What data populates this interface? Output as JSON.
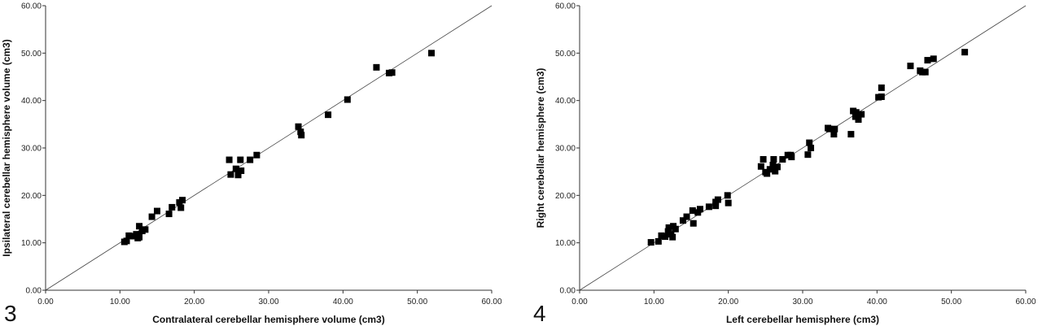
{
  "chart_data": [
    {
      "type": "scatter",
      "panel_label": "3",
      "title": "",
      "xlabel": "Contralateral cerebellar hemisphere volume (cm3)",
      "ylabel": "Ipsilateral cerebellar hemisphere volume (cm3)",
      "xlim": [
        0,
        60
      ],
      "ylim": [
        0,
        60
      ],
      "xticks": [
        "0.00",
        "10.00",
        "20.00",
        "30.00",
        "40.00",
        "50.00",
        "60.00"
      ],
      "yticks": [
        "0.00",
        "10.00",
        "20.00",
        "30.00",
        "40.00",
        "50.00",
        "60.00"
      ],
      "grid": false,
      "reference_line": [
        [
          0,
          0
        ],
        [
          60,
          60
        ]
      ],
      "points": [
        [
          10.6,
          10.2
        ],
        [
          10.9,
          10.4
        ],
        [
          11.2,
          11.5
        ],
        [
          11.8,
          11.4
        ],
        [
          12.2,
          11.8
        ],
        [
          12.4,
          11.0
        ],
        [
          12.6,
          11.2
        ],
        [
          12.6,
          13.5
        ],
        [
          13.0,
          12.5
        ],
        [
          13.4,
          12.8
        ],
        [
          14.3,
          15.5
        ],
        [
          15.0,
          16.7
        ],
        [
          16.6,
          16.1
        ],
        [
          17.0,
          17.5
        ],
        [
          18.0,
          18.5
        ],
        [
          18.2,
          17.4
        ],
        [
          18.4,
          19.0
        ],
        [
          24.7,
          27.5
        ],
        [
          24.9,
          24.4
        ],
        [
          25.6,
          25.6
        ],
        [
          25.9,
          24.3
        ],
        [
          26.2,
          27.5
        ],
        [
          26.3,
          25.2
        ],
        [
          27.5,
          27.5
        ],
        [
          28.4,
          28.5
        ],
        [
          34.0,
          34.5
        ],
        [
          34.3,
          33.4
        ],
        [
          34.4,
          32.7
        ],
        [
          38.0,
          37.0
        ],
        [
          40.6,
          40.2
        ],
        [
          44.5,
          47.0
        ],
        [
          46.2,
          45.8
        ],
        [
          46.6,
          45.9
        ],
        [
          51.9,
          50.0
        ]
      ]
    },
    {
      "type": "scatter",
      "panel_label": "4",
      "title": "",
      "xlabel": "Left cerebellar  hemisphere (cm3)",
      "ylabel": "Right cerebellar hemisphere (cm3)",
      "xlim": [
        0,
        60
      ],
      "ylim": [
        0,
        60
      ],
      "xticks": [
        "0.00",
        "10.00",
        "20.00",
        "30.00",
        "40.00",
        "50.00",
        "60.00"
      ],
      "yticks": [
        "0.00",
        "10.00",
        "20.00",
        "30.00",
        "40.00",
        "50.00",
        "60.00"
      ],
      "grid": false,
      "reference_line": [
        [
          0,
          0
        ],
        [
          60,
          60
        ]
      ],
      "points": [
        [
          9.6,
          10.1
        ],
        [
          10.6,
          10.3
        ],
        [
          11.0,
          11.5
        ],
        [
          11.5,
          11.3
        ],
        [
          11.9,
          12.4
        ],
        [
          12.0,
          13.2
        ],
        [
          12.3,
          11.8
        ],
        [
          12.5,
          11.2
        ],
        [
          12.6,
          13.5
        ],
        [
          12.9,
          12.9
        ],
        [
          13.9,
          14.7
        ],
        [
          14.4,
          15.5
        ],
        [
          15.2,
          16.8
        ],
        [
          15.3,
          14.1
        ],
        [
          15.9,
          16.4
        ],
        [
          16.2,
          17.1
        ],
        [
          17.4,
          17.6
        ],
        [
          18.3,
          17.8
        ],
        [
          18.3,
          18.6
        ],
        [
          18.6,
          19.1
        ],
        [
          19.9,
          20.0
        ],
        [
          20.0,
          18.4
        ],
        [
          24.4,
          26.1
        ],
        [
          24.7,
          27.6
        ],
        [
          25.0,
          24.9
        ],
        [
          25.2,
          24.6
        ],
        [
          25.6,
          25.5
        ],
        [
          26.0,
          26.4
        ],
        [
          26.1,
          27.6
        ],
        [
          26.3,
          25.1
        ],
        [
          26.6,
          26.0
        ],
        [
          27.3,
          27.6
        ],
        [
          28.0,
          28.5
        ],
        [
          28.4,
          28.5
        ],
        [
          28.5,
          28.1
        ],
        [
          30.7,
          28.6
        ],
        [
          30.9,
          31.1
        ],
        [
          31.1,
          30.0
        ],
        [
          33.4,
          34.2
        ],
        [
          33.6,
          34.0
        ],
        [
          34.2,
          32.9
        ],
        [
          34.3,
          34.0
        ],
        [
          36.5,
          32.9
        ],
        [
          36.8,
          37.8
        ],
        [
          37.1,
          36.6
        ],
        [
          37.2,
          37.5
        ],
        [
          37.5,
          36.0
        ],
        [
          37.9,
          37.1
        ],
        [
          40.2,
          40.7
        ],
        [
          40.6,
          40.8
        ],
        [
          40.6,
          42.7
        ],
        [
          44.5,
          47.3
        ],
        [
          45.8,
          46.3
        ],
        [
          46.1,
          46.0
        ],
        [
          46.5,
          46.0
        ],
        [
          46.8,
          48.5
        ],
        [
          47.6,
          48.8
        ],
        [
          51.8,
          50.2
        ]
      ]
    }
  ]
}
